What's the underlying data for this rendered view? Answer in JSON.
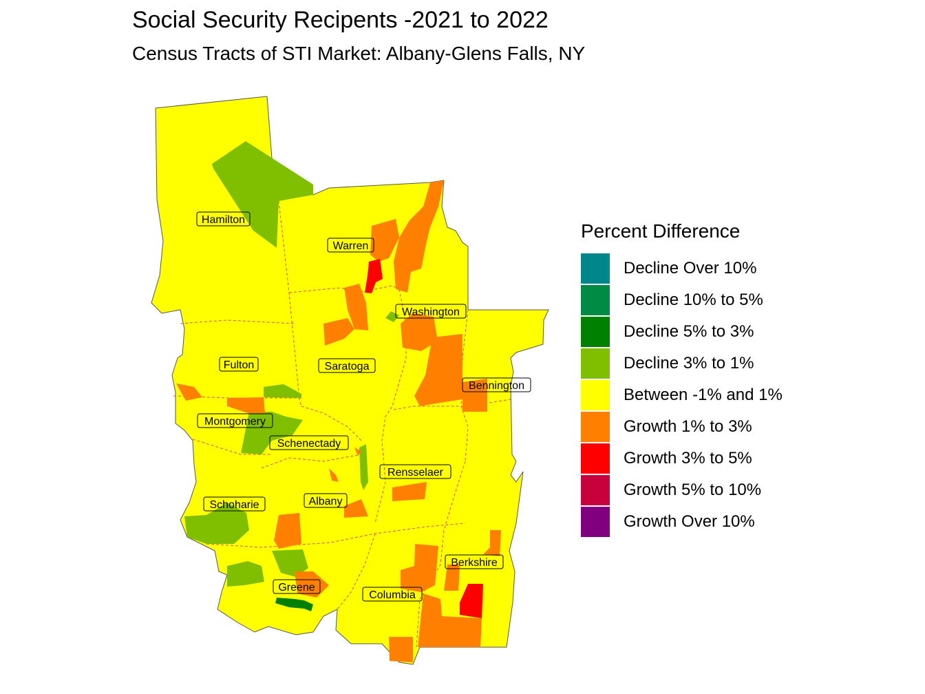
{
  "title": "Social Security Recipents -2021 to 2022",
  "subtitle": "Census Tracts of STI Market: Albany-Glens Falls, NY",
  "legend": {
    "title": "Percent Difference",
    "items": [
      {
        "label": "Decline Over 10%",
        "color": "#00868B"
      },
      {
        "label": "Decline 10% to 5%",
        "color": "#008B45"
      },
      {
        "label": "Decline 5% to 3%",
        "color": "#008000"
      },
      {
        "label": "Decline 3% to 1%",
        "color": "#7FBF00"
      },
      {
        "label": "Between -1% and 1%",
        "color": "#FFFF00"
      },
      {
        "label": "Growth 1% to 3%",
        "color": "#FF8000"
      },
      {
        "label": "Growth 3% to 5%",
        "color": "#FF0000"
      },
      {
        "label": "Growth 5% to 10%",
        "color": "#C8003C"
      },
      {
        "label": "Growth Over 10%",
        "color": "#800080"
      }
    ]
  },
  "counties": [
    "Hamilton",
    "Warren",
    "Washington",
    "Fulton",
    "Saratoga",
    "Bennington",
    "Montgomery",
    "Schenectady",
    "Rensselaer",
    "Schoharie",
    "Albany",
    "Berkshire",
    "Greene",
    "Columbia"
  ]
}
